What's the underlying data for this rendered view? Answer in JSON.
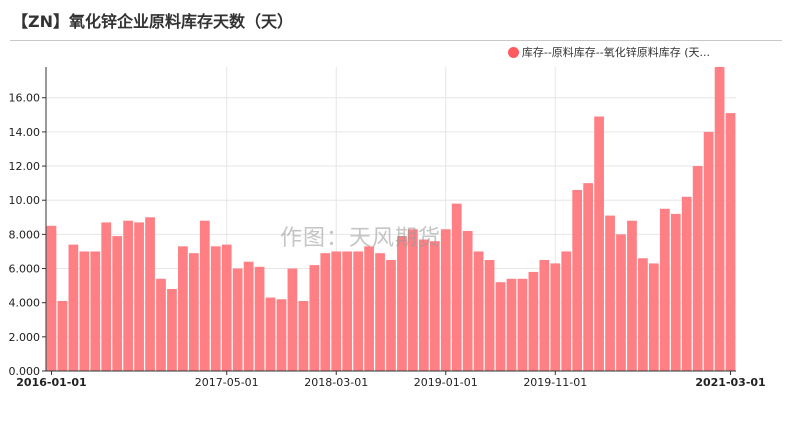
{
  "header": {
    "title": "【ZN】氧化锌企业原料库存天数（天）"
  },
  "watermark": "作图：天风期货",
  "colors": {
    "bar": "#ff8084",
    "legend_dot": "#ff5a5f"
  },
  "chart_data": {
    "type": "bar",
    "title": "【ZN】氧化锌企业原料库存天数（天）",
    "ylim": [
      0,
      17.8
    ],
    "grid": true,
    "legend_position": "top-right",
    "yticks": [
      "0.000",
      "2.000",
      "4.000",
      "6.000",
      "8.000",
      "10.00",
      "12.00",
      "14.00",
      "16.00"
    ],
    "xticks": [
      {
        "label": "2016-01-01",
        "index": 0,
        "bold": true
      },
      {
        "label": "2017-05-01",
        "index": 16,
        "bold": false
      },
      {
        "label": "2018-03-01",
        "index": 26,
        "bold": false
      },
      {
        "label": "2019-01-01",
        "index": 36,
        "bold": false
      },
      {
        "label": "2019-11-01",
        "index": 46,
        "bold": false
      },
      {
        "label": "2021-03-01",
        "index": 62,
        "bold": true
      }
    ],
    "series": [
      {
        "name": "库存--原料库存--氧化锌原料库存 (天...",
        "values": [
          8.5,
          4.1,
          7.4,
          7.0,
          7.0,
          8.7,
          7.9,
          8.8,
          8.7,
          9.0,
          5.4,
          4.8,
          7.3,
          6.9,
          8.8,
          7.3,
          7.4,
          6.0,
          6.4,
          6.1,
          4.3,
          4.2,
          6.0,
          4.1,
          6.2,
          6.9,
          7.0,
          7.0,
          7.0,
          7.3,
          6.9,
          6.5,
          7.9,
          8.3,
          7.7,
          7.6,
          8.3,
          9.8,
          8.2,
          7.0,
          6.5,
          5.2,
          5.4,
          5.4,
          5.8,
          6.5,
          6.3,
          7.0,
          10.6,
          11.0,
          14.9,
          9.1,
          8.0,
          8.8,
          6.6,
          6.3,
          9.5,
          9.2,
          10.2,
          12.0,
          14.0,
          18.0,
          15.1
        ]
      }
    ]
  }
}
